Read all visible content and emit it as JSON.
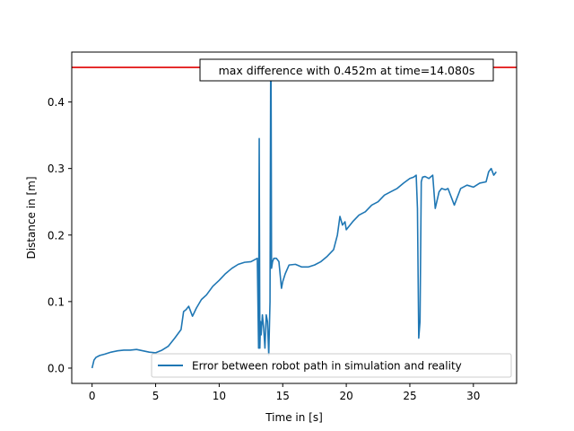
{
  "chart_data": {
    "type": "line",
    "xlabel": "Time in [s]",
    "ylabel": "Distance in [m]",
    "xlim": [
      -1.6,
      33.4
    ],
    "ylim": [
      -0.023,
      0.475
    ],
    "x_ticks": [
      0,
      5,
      10,
      15,
      20,
      25,
      30
    ],
    "y_ticks": [
      0.0,
      0.1,
      0.2,
      0.3,
      0.4
    ],
    "x_tick_labels": [
      "0",
      "5",
      "10",
      "15",
      "20",
      "25",
      "30"
    ],
    "y_tick_labels": [
      "0.0",
      "0.1",
      "0.2",
      "0.3",
      "0.4"
    ],
    "grid": false,
    "legend_position": "lower-right",
    "annotation": "max difference with 0.452m at time=14.080s",
    "threshold": {
      "y": 0.452,
      "color": "#e00000"
    },
    "series": [
      {
        "name": "Error between robot path in simulation and reality",
        "color": "#1f77b4",
        "x": [
          0.0,
          0.15,
          0.3,
          0.6,
          1.0,
          1.5,
          2.0,
          2.5,
          3.0,
          3.5,
          4.0,
          4.5,
          5.0,
          5.5,
          6.0,
          6.5,
          7.0,
          7.2,
          7.4,
          7.6,
          7.9,
          8.2,
          8.6,
          9.0,
          9.5,
          10.0,
          10.5,
          11.0,
          11.5,
          12.0,
          12.5,
          13.0,
          13.1,
          13.15,
          13.2,
          13.25,
          13.3,
          13.4,
          13.5,
          13.6,
          13.7,
          13.8,
          13.9,
          14.0,
          14.05,
          14.08,
          14.12,
          14.2,
          14.3,
          14.5,
          14.7,
          14.9,
          15.0,
          15.2,
          15.5,
          16.0,
          16.5,
          17.0,
          17.5,
          18.0,
          18.5,
          19.0,
          19.3,
          19.5,
          19.7,
          19.9,
          20.0,
          20.5,
          21.0,
          21.5,
          22.0,
          22.5,
          23.0,
          23.5,
          24.0,
          24.5,
          25.0,
          25.3,
          25.5,
          25.6,
          25.7,
          25.8,
          25.9,
          26.0,
          26.2,
          26.5,
          26.8,
          27.0,
          27.3,
          27.5,
          27.8,
          28.0,
          28.5,
          29.0,
          29.5,
          30.0,
          30.5,
          31.0,
          31.2,
          31.4,
          31.6,
          31.8
        ],
        "values": [
          0.0,
          0.012,
          0.016,
          0.019,
          0.021,
          0.024,
          0.026,
          0.027,
          0.027,
          0.028,
          0.026,
          0.024,
          0.023,
          0.027,
          0.033,
          0.045,
          0.058,
          0.085,
          0.088,
          0.093,
          0.078,
          0.09,
          0.103,
          0.11,
          0.123,
          0.132,
          0.142,
          0.15,
          0.156,
          0.159,
          0.16,
          0.165,
          0.03,
          0.345,
          0.03,
          0.07,
          0.05,
          0.08,
          0.06,
          0.03,
          0.08,
          0.07,
          0.02,
          0.1,
          0.44,
          0.452,
          0.15,
          0.16,
          0.165,
          0.165,
          0.16,
          0.12,
          0.13,
          0.142,
          0.155,
          0.156,
          0.152,
          0.152,
          0.155,
          0.16,
          0.168,
          0.178,
          0.2,
          0.228,
          0.215,
          0.22,
          0.208,
          0.22,
          0.23,
          0.235,
          0.245,
          0.25,
          0.26,
          0.265,
          0.27,
          0.278,
          0.285,
          0.287,
          0.29,
          0.24,
          0.045,
          0.07,
          0.28,
          0.287,
          0.288,
          0.285,
          0.29,
          0.24,
          0.265,
          0.27,
          0.268,
          0.27,
          0.245,
          0.27,
          0.275,
          0.272,
          0.278,
          0.28,
          0.295,
          0.3,
          0.29,
          0.295
        ]
      }
    ]
  }
}
